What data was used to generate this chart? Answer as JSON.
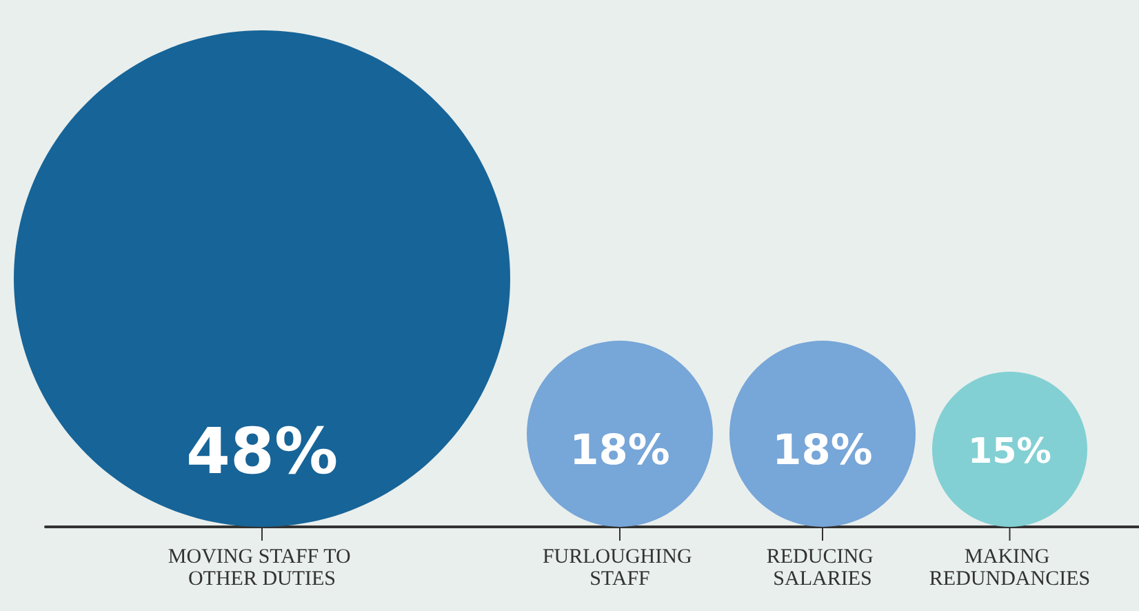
{
  "chart_data": {
    "type": "other",
    "categories": [
      "MOVING STAFF TO OTHER DUTIES",
      "FURLOUGHING STAFF",
      "REDUCING SALARIES",
      "MAKING REDUNDANCIES"
    ],
    "values": [
      48,
      18,
      18,
      15
    ],
    "value_labels": [
      "48%",
      "18%",
      "18%",
      "15%"
    ],
    "colors": [
      "#176498",
      "#77a6d8",
      "#77a6d8",
      "#82d0d3"
    ]
  }
}
